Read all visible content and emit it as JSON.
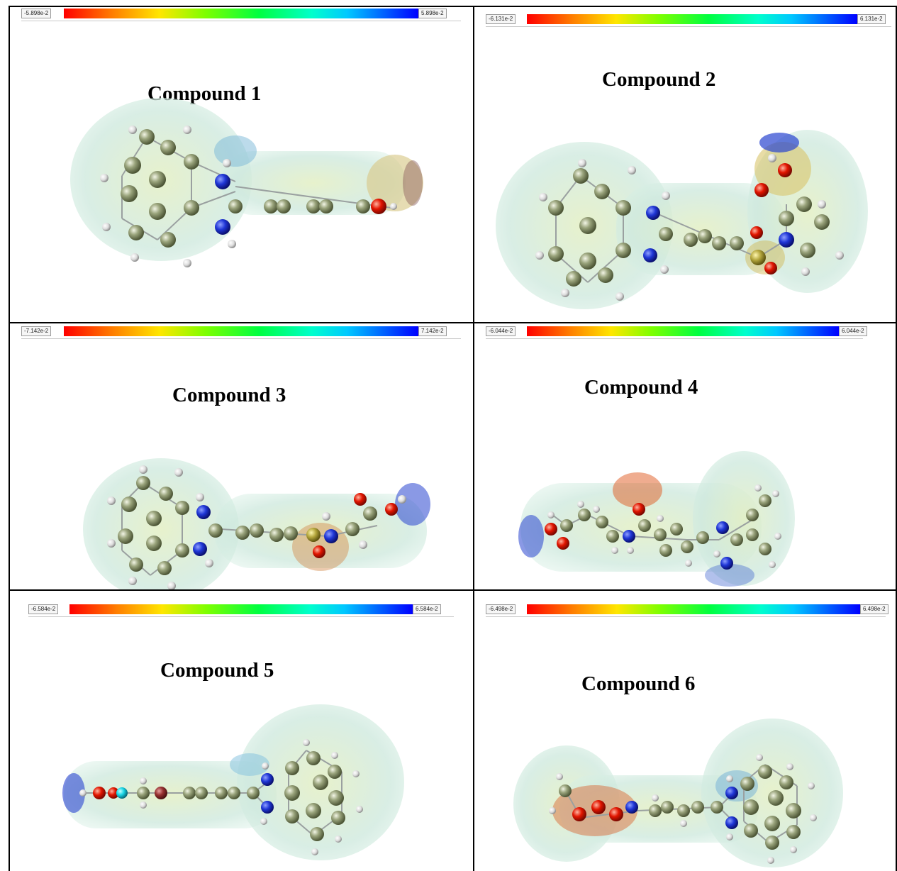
{
  "colors": {
    "scale_negative": "#ff0000",
    "scale_positive": "#0000ff",
    "surface": "#cfead8",
    "carbon": "#7e8a62",
    "nitrogen": "#1b2fd0",
    "oxygen": "#e01000",
    "hydrogen": "#e8e8e8",
    "sulfur": "#b6a63a"
  },
  "panels": [
    {
      "title": "Compound 1",
      "scale_min": "-5.898e-2",
      "scale_max": "5.898e-2"
    },
    {
      "title": "Compound 2",
      "scale_min": "-6.131e-2",
      "scale_max": "6.131e-2"
    },
    {
      "title": "Compound 3",
      "scale_min": "-7.142e-2",
      "scale_max": "7.142e-2"
    },
    {
      "title": "Compound 4",
      "scale_min": "-6.044e-2",
      "scale_max": "6.044e-2"
    },
    {
      "title": "Compound 5",
      "scale_min": "-6.584e-2",
      "scale_max": "6.584e-2"
    },
    {
      "title": "Compound 6",
      "scale_min": "-6.498e-2",
      "scale_max": "6.498e-2"
    }
  ]
}
